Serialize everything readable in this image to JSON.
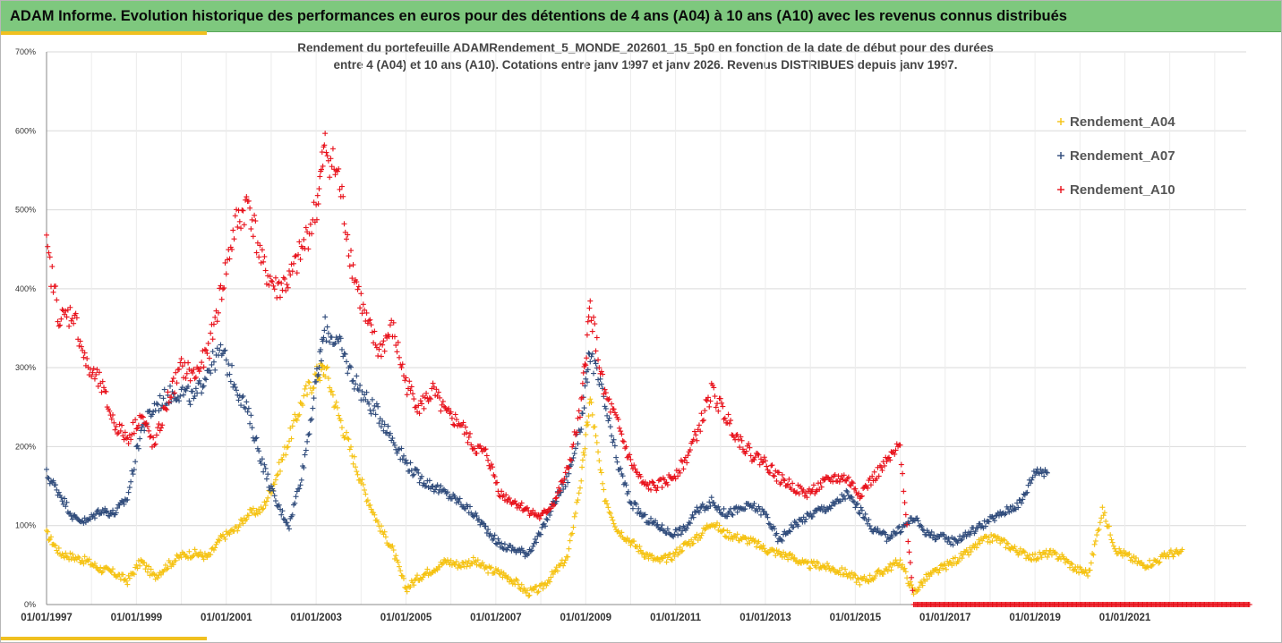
{
  "header": {
    "title": "ADAM Informe. Evolution historique des performances en euros pour des détentions de 4 ans (A04) à 10 ans (A10) avec les revenus connus distribués"
  },
  "colors": {
    "header_bg": "#7ec87e",
    "accent": "#f0c020",
    "a04": "#f5c211",
    "a07": "#2e4a7a",
    "a10": "#e8101a",
    "grid": "#d9d9d9"
  },
  "chart_data": {
    "type": "scatter",
    "title_line1": "Rendement du portefeuille ADAMRendement_5_MONDE_202601_15_5p0 en fonction de la date de début pour des durées",
    "title_line2": "entre 4 (A04) et 10 ans (A10). Cotations entre janv 1997 et janv 2026. Revenus DISTRIBUES depuis janv 1997.",
    "x_unit": "year",
    "xlim": [
      1997.0,
      2023.7
    ],
    "ylim": [
      0,
      700
    ],
    "y_ticks": [
      0,
      100,
      200,
      300,
      400,
      500,
      600,
      700
    ],
    "y_tick_labels": [
      "0%",
      "100%",
      "200%",
      "300%",
      "400%",
      "500%",
      "600%",
      "700%"
    ],
    "x_ticks": [
      1997,
      1999,
      2001,
      2003,
      2005,
      2007,
      2009,
      2011,
      2013,
      2015,
      2017,
      2019,
      2021
    ],
    "x_tick_labels": [
      "01/01/1997",
      "01/01/1999",
      "01/01/2001",
      "01/01/2003",
      "01/01/2005",
      "01/01/2007",
      "01/01/2009",
      "01/01/2011",
      "01/01/2013",
      "01/01/2015",
      "01/01/2017",
      "01/01/2019",
      "01/01/2021"
    ],
    "legend_position": "right",
    "series": [
      {
        "name": "Rendement_A04",
        "color": "#f5c211",
        "x": [
          1997.0,
          1997.3,
          1997.6,
          1997.9,
          1998.2,
          1998.5,
          1998.8,
          1999.1,
          1999.4,
          1999.7,
          2000.0,
          2000.3,
          2000.6,
          2000.9,
          2001.2,
          2001.5,
          2001.8,
          2002.1,
          2002.4,
          2002.7,
          2003.0,
          2003.2,
          2003.5,
          2003.8,
          2004.1,
          2004.4,
          2004.7,
          2005.0,
          2005.3,
          2005.6,
          2005.9,
          2006.2,
          2006.5,
          2006.8,
          2007.1,
          2007.4,
          2007.7,
          2008.0,
          2008.3,
          2008.6,
          2008.9,
          2009.1,
          2009.4,
          2009.7,
          2010.0,
          2010.3,
          2010.6,
          2010.9,
          2011.2,
          2011.5,
          2011.8,
          2012.1,
          2012.4,
          2012.7,
          2013.0,
          2013.3,
          2013.6,
          2013.9,
          2014.2,
          2014.5,
          2014.8,
          2015.1,
          2015.4,
          2015.7,
          2016.0,
          2016.3,
          2016.6,
          2016.9,
          2017.2,
          2017.5,
          2017.8,
          2018.1,
          2018.4,
          2018.7,
          2019.0,
          2019.3,
          2019.6,
          2019.9,
          2020.2,
          2020.5,
          2020.8,
          2021.1,
          2021.4,
          2021.7,
          2022.0
        ],
        "values": [
          90,
          65,
          60,
          55,
          45,
          40,
          30,
          55,
          35,
          50,
          62,
          65,
          60,
          85,
          95,
          115,
          120,
          160,
          210,
          260,
          290,
          300,
          240,
          190,
          140,
          100,
          70,
          20,
          35,
          45,
          55,
          50,
          55,
          45,
          40,
          30,
          15,
          20,
          40,
          60,
          160,
          260,
          140,
          95,
          80,
          65,
          55,
          60,
          75,
          85,
          105,
          90,
          85,
          80,
          70,
          65,
          60,
          50,
          50,
          45,
          40,
          30,
          35,
          45,
          55,
          15,
          35,
          45,
          55,
          65,
          80,
          85,
          75,
          65,
          60,
          65,
          60,
          45,
          40,
          120,
          70,
          60,
          50,
          55,
          65
        ]
      },
      {
        "name": "Rendement_A07",
        "color": "#2e4a7a",
        "x": [
          1997.0,
          1997.3,
          1997.6,
          1997.9,
          1998.2,
          1998.5,
          1998.8,
          1999.1,
          1999.4,
          1999.7,
          2000.0,
          2000.3,
          2000.6,
          2000.9,
          2001.2,
          2001.5,
          2001.8,
          2002.1,
          2002.4,
          2002.7,
          2003.0,
          2003.2,
          2003.5,
          2003.8,
          2004.1,
          2004.4,
          2004.7,
          2005.0,
          2005.3,
          2005.6,
          2005.9,
          2006.2,
          2006.5,
          2006.8,
          2007.1,
          2007.4,
          2007.7,
          2008.0,
          2008.3,
          2008.6,
          2008.9,
          2009.1,
          2009.4,
          2009.7,
          2010.0,
          2010.3,
          2010.6,
          2010.9,
          2011.2,
          2011.5,
          2011.8,
          2012.1,
          2012.4,
          2012.7,
          2013.0,
          2013.3,
          2013.6,
          2013.9,
          2014.2,
          2014.5,
          2014.8,
          2015.1,
          2015.4,
          2015.7,
          2016.0,
          2016.3,
          2016.6,
          2016.9,
          2017.2,
          2017.5,
          2017.8,
          2018.1,
          2018.4,
          2018.7,
          2019.0
        ],
        "values": [
          165,
          140,
          110,
          105,
          120,
          115,
          135,
          220,
          250,
          265,
          270,
          260,
          300,
          320,
          280,
          240,
          180,
          130,
          100,
          170,
          280,
          350,
          330,
          290,
          260,
          240,
          210,
          180,
          160,
          150,
          140,
          130,
          115,
          95,
          75,
          70,
          65,
          90,
          130,
          160,
          230,
          320,
          260,
          180,
          130,
          110,
          100,
          90,
          95,
          120,
          130,
          115,
          120,
          125,
          115,
          80,
          100,
          110,
          120,
          125,
          140,
          120,
          95,
          85,
          95,
          110,
          90,
          85,
          80,
          90,
          100,
          110,
          120,
          130,
          170
        ]
      },
      {
        "name": "Rendement_A10",
        "color": "#e8101a",
        "x": [
          1997.0,
          1997.3,
          1997.6,
          1997.9,
          1998.2,
          1998.5,
          1998.8,
          1999.1,
          1999.4,
          1999.7,
          2000.0,
          2000.3,
          2000.6,
          2000.9,
          2001.2,
          2001.5,
          2001.8,
          2002.1,
          2002.4,
          2002.7,
          2003.0,
          2003.2,
          2003.5,
          2003.8,
          2004.1,
          2004.4,
          2004.7,
          2005.0,
          2005.3,
          2005.6,
          2005.9,
          2006.2,
          2006.5,
          2006.8,
          2007.1,
          2007.4,
          2007.7,
          2008.0,
          2008.3,
          2008.6,
          2008.9,
          2009.1,
          2009.4,
          2009.7,
          2010.0,
          2010.3,
          2010.6,
          2010.9,
          2011.2,
          2011.5,
          2011.8,
          2012.1,
          2012.4,
          2012.7,
          2013.0,
          2013.3,
          2013.6,
          2013.9,
          2014.2,
          2014.5,
          2014.8,
          2015.1,
          2015.4,
          2015.7,
          2016.0,
          2016.3,
          2016.6,
          2016.9,
          2017.2,
          2017.5,
          2017.8,
          2018.1,
          2018.4,
          2018.7,
          2019.0,
          2019.3,
          2019.6,
          2019.9,
          2020.2,
          2020.5,
          2020.8,
          2021.1,
          2021.4,
          2021.7,
          2022.0,
          2022.3,
          2022.6,
          2022.9,
          2023.2,
          2023.5
        ],
        "values": [
          450,
          360,
          370,
          300,
          280,
          230,
          210,
          240,
          200,
          260,
          300,
          290,
          320,
          400,
          480,
          510,
          430,
          400,
          410,
          450,
          500,
          580,
          540,
          430,
          360,
          320,
          350,
          280,
          250,
          270,
          240,
          230,
          200,
          190,
          140,
          130,
          120,
          110,
          130,
          170,
          250,
          380,
          270,
          230,
          180,
          150,
          150,
          160,
          180,
          220,
          270,
          240,
          210,
          190,
          180,
          160,
          150,
          140,
          150,
          160,
          160,
          140,
          160,
          180,
          200,
          0,
          0,
          0,
          0,
          0,
          0,
          0,
          0,
          0,
          0,
          0,
          0,
          0,
          0,
          0,
          0,
          0,
          0,
          0,
          0,
          0,
          0,
          0,
          0,
          0
        ]
      }
    ]
  }
}
